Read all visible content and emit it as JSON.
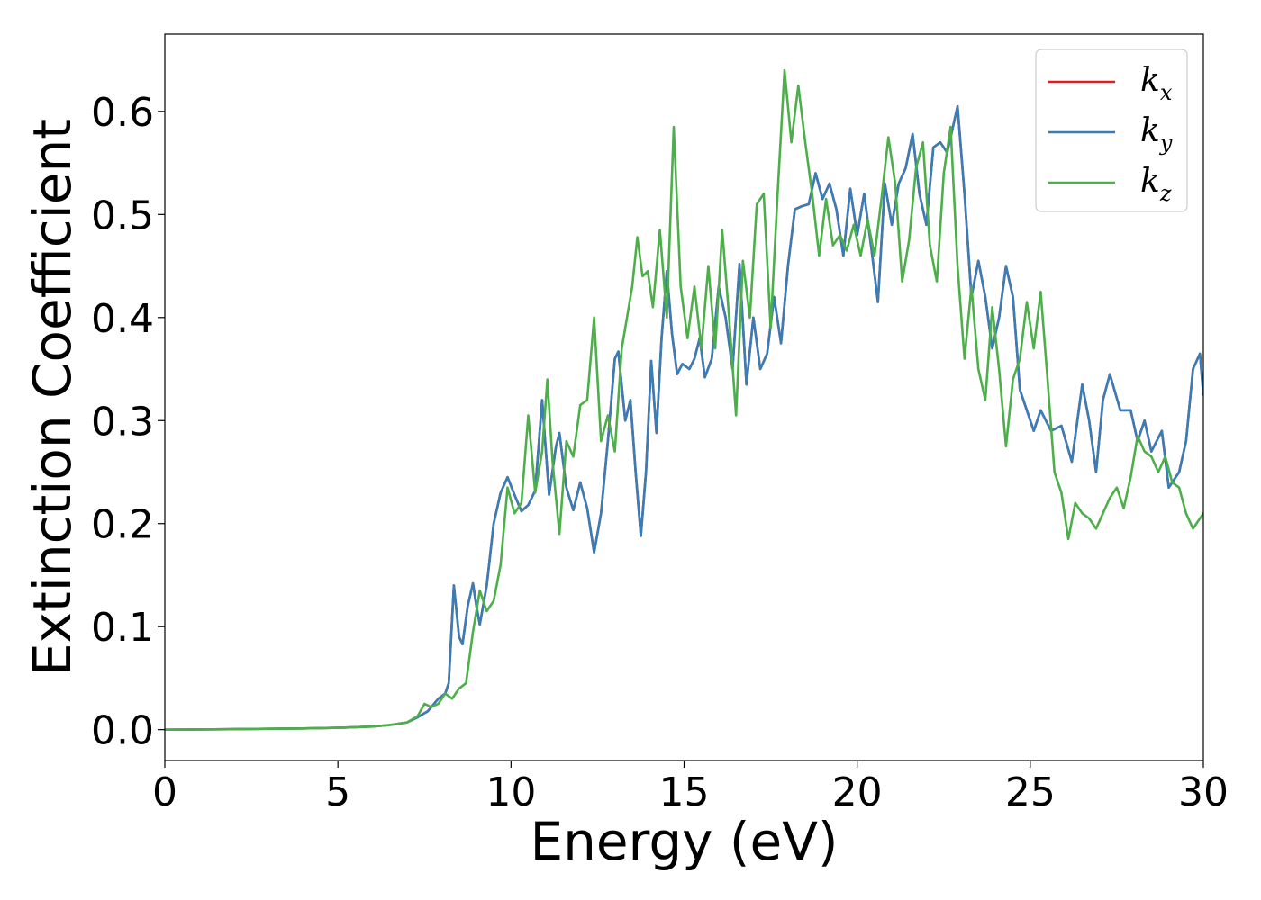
{
  "chart_data": {
    "type": "line",
    "title": "",
    "xlabel": "Energy (eV)",
    "ylabel": "Extinction Coefficient",
    "xlim": [
      0,
      30
    ],
    "ylim": [
      -0.03,
      0.675
    ],
    "xticks": [
      0,
      5,
      10,
      15,
      20,
      25,
      30
    ],
    "xtick_labels": [
      "0",
      "5",
      "10",
      "15",
      "20",
      "25",
      "30"
    ],
    "yticks": [
      0.0,
      0.1,
      0.2,
      0.3,
      0.4,
      0.5,
      0.6
    ],
    "ytick_labels": [
      "0.0",
      "0.1",
      "0.2",
      "0.3",
      "0.4",
      "0.5",
      "0.6"
    ],
    "grid": false,
    "legend_position": "top-right",
    "series": [
      {
        "name": "k",
        "subscript": "x",
        "color": "#e41a1c",
        "x": [
          0,
          2,
          4,
          5,
          6,
          6.5,
          7,
          7.3,
          7.6,
          7.9,
          8.1,
          8.2,
          8.35,
          8.5,
          8.6,
          8.75,
          8.9,
          9.0,
          9.1,
          9.3,
          9.5,
          9.7,
          9.9,
          10.1,
          10.3,
          10.5,
          10.7,
          10.9,
          11.1,
          11.3,
          11.4,
          11.6,
          11.8,
          12.0,
          12.2,
          12.4,
          12.6,
          12.8,
          13.0,
          13.1,
          13.3,
          13.45,
          13.6,
          13.75,
          13.9,
          14.05,
          14.2,
          14.35,
          14.5,
          14.65,
          14.8,
          14.95,
          15.15,
          15.3,
          15.45,
          15.6,
          15.8,
          16.0,
          16.2,
          16.4,
          16.6,
          16.8,
          17.0,
          17.2,
          17.4,
          17.6,
          17.8,
          18.0,
          18.2,
          18.4,
          18.6,
          18.8,
          19.0,
          19.2,
          19.4,
          19.6,
          19.8,
          20.0,
          20.2,
          20.4,
          20.6,
          20.8,
          21.0,
          21.2,
          21.4,
          21.6,
          21.8,
          22.0,
          22.2,
          22.4,
          22.6,
          22.9,
          23.1,
          23.3,
          23.5,
          23.7,
          23.9,
          24.1,
          24.3,
          24.5,
          24.7,
          24.9,
          25.1,
          25.3,
          25.6,
          25.9,
          26.2,
          26.5,
          26.7,
          26.9,
          27.1,
          27.3,
          27.6,
          27.9,
          28.1,
          28.3,
          28.5,
          28.8,
          29.0,
          29.3,
          29.5,
          29.7,
          29.9,
          30.0
        ],
        "y": [
          0,
          0.0005,
          0.0012,
          0.0018,
          0.003,
          0.0045,
          0.007,
          0.012,
          0.018,
          0.03,
          0.035,
          0.045,
          0.14,
          0.09,
          0.083,
          0.12,
          0.142,
          0.12,
          0.102,
          0.14,
          0.2,
          0.23,
          0.245,
          0.228,
          0.212,
          0.218,
          0.232,
          0.32,
          0.228,
          0.275,
          0.288,
          0.235,
          0.213,
          0.24,
          0.215,
          0.172,
          0.21,
          0.28,
          0.36,
          0.367,
          0.3,
          0.32,
          0.25,
          0.188,
          0.25,
          0.358,
          0.288,
          0.38,
          0.445,
          0.385,
          0.345,
          0.355,
          0.35,
          0.36,
          0.38,
          0.342,
          0.36,
          0.43,
          0.4,
          0.35,
          0.452,
          0.335,
          0.4,
          0.35,
          0.365,
          0.42,
          0.375,
          0.45,
          0.505,
          0.508,
          0.51,
          0.54,
          0.515,
          0.53,
          0.505,
          0.46,
          0.525,
          0.48,
          0.52,
          0.47,
          0.415,
          0.53,
          0.49,
          0.53,
          0.545,
          0.578,
          0.52,
          0.49,
          0.565,
          0.57,
          0.56,
          0.605,
          0.52,
          0.42,
          0.455,
          0.42,
          0.37,
          0.4,
          0.45,
          0.42,
          0.33,
          0.31,
          0.29,
          0.31,
          0.29,
          0.295,
          0.26,
          0.335,
          0.3,
          0.25,
          0.32,
          0.345,
          0.31,
          0.31,
          0.28,
          0.3,
          0.27,
          0.29,
          0.235,
          0.25,
          0.28,
          0.35,
          0.365,
          0.325
        ]
      },
      {
        "name": "k",
        "subscript": "y",
        "color": "#377eb8",
        "x": [
          0,
          2,
          4,
          5,
          6,
          6.5,
          7,
          7.3,
          7.6,
          7.9,
          8.1,
          8.2,
          8.35,
          8.5,
          8.6,
          8.75,
          8.9,
          9.0,
          9.1,
          9.3,
          9.5,
          9.7,
          9.9,
          10.1,
          10.3,
          10.5,
          10.7,
          10.9,
          11.1,
          11.3,
          11.4,
          11.6,
          11.8,
          12.0,
          12.2,
          12.4,
          12.6,
          12.8,
          13.0,
          13.1,
          13.3,
          13.45,
          13.6,
          13.75,
          13.9,
          14.05,
          14.2,
          14.35,
          14.5,
          14.65,
          14.8,
          14.95,
          15.15,
          15.3,
          15.45,
          15.6,
          15.8,
          16.0,
          16.2,
          16.4,
          16.6,
          16.8,
          17.0,
          17.2,
          17.4,
          17.6,
          17.8,
          18.0,
          18.2,
          18.4,
          18.6,
          18.8,
          19.0,
          19.2,
          19.4,
          19.6,
          19.8,
          20.0,
          20.2,
          20.4,
          20.6,
          20.8,
          21.0,
          21.2,
          21.4,
          21.6,
          21.8,
          22.0,
          22.2,
          22.4,
          22.6,
          22.9,
          23.1,
          23.3,
          23.5,
          23.7,
          23.9,
          24.1,
          24.3,
          24.5,
          24.7,
          24.9,
          25.1,
          25.3,
          25.6,
          25.9,
          26.2,
          26.5,
          26.7,
          26.9,
          27.1,
          27.3,
          27.6,
          27.9,
          28.1,
          28.3,
          28.5,
          28.8,
          29.0,
          29.3,
          29.5,
          29.7,
          29.9,
          30.0
        ],
        "y": [
          0,
          0.0005,
          0.0012,
          0.0018,
          0.003,
          0.0045,
          0.007,
          0.012,
          0.018,
          0.03,
          0.035,
          0.045,
          0.14,
          0.09,
          0.083,
          0.12,
          0.142,
          0.12,
          0.102,
          0.14,
          0.2,
          0.23,
          0.245,
          0.228,
          0.212,
          0.218,
          0.232,
          0.32,
          0.228,
          0.275,
          0.288,
          0.235,
          0.213,
          0.24,
          0.215,
          0.172,
          0.21,
          0.28,
          0.36,
          0.367,
          0.3,
          0.32,
          0.25,
          0.188,
          0.25,
          0.358,
          0.288,
          0.38,
          0.445,
          0.385,
          0.345,
          0.355,
          0.35,
          0.36,
          0.38,
          0.342,
          0.36,
          0.43,
          0.4,
          0.35,
          0.452,
          0.335,
          0.4,
          0.35,
          0.365,
          0.42,
          0.375,
          0.45,
          0.505,
          0.508,
          0.51,
          0.54,
          0.515,
          0.53,
          0.505,
          0.46,
          0.525,
          0.48,
          0.52,
          0.47,
          0.415,
          0.53,
          0.49,
          0.53,
          0.545,
          0.578,
          0.52,
          0.49,
          0.565,
          0.57,
          0.56,
          0.605,
          0.52,
          0.42,
          0.455,
          0.42,
          0.37,
          0.4,
          0.45,
          0.42,
          0.33,
          0.31,
          0.29,
          0.31,
          0.29,
          0.295,
          0.26,
          0.335,
          0.3,
          0.25,
          0.32,
          0.345,
          0.31,
          0.31,
          0.28,
          0.3,
          0.27,
          0.29,
          0.235,
          0.25,
          0.28,
          0.35,
          0.365,
          0.325
        ]
      },
      {
        "name": "k",
        "subscript": "z",
        "color": "#4daf4a",
        "x": [
          0,
          2,
          4,
          5,
          6,
          6.5,
          7,
          7.3,
          7.5,
          7.7,
          7.9,
          8.1,
          8.3,
          8.5,
          8.7,
          8.9,
          9.1,
          9.3,
          9.5,
          9.7,
          9.9,
          10.1,
          10.3,
          10.5,
          10.7,
          10.9,
          11.05,
          11.2,
          11.4,
          11.6,
          11.8,
          12.0,
          12.2,
          12.4,
          12.6,
          12.8,
          13.0,
          13.2,
          13.35,
          13.5,
          13.65,
          13.8,
          13.95,
          14.1,
          14.3,
          14.5,
          14.7,
          14.9,
          15.1,
          15.3,
          15.5,
          15.7,
          15.9,
          16.1,
          16.3,
          16.5,
          16.7,
          16.9,
          17.1,
          17.3,
          17.5,
          17.7,
          17.9,
          18.1,
          18.3,
          18.5,
          18.7,
          18.9,
          19.1,
          19.3,
          19.5,
          19.7,
          19.9,
          20.1,
          20.3,
          20.5,
          20.7,
          20.9,
          21.1,
          21.3,
          21.5,
          21.7,
          21.9,
          22.1,
          22.3,
          22.5,
          22.7,
          22.9,
          23.1,
          23.3,
          23.5,
          23.7,
          23.9,
          24.1,
          24.3,
          24.5,
          24.7,
          24.9,
          25.1,
          25.3,
          25.5,
          25.7,
          25.9,
          26.1,
          26.3,
          26.5,
          26.7,
          26.9,
          27.1,
          27.3,
          27.5,
          27.7,
          27.9,
          28.1,
          28.3,
          28.5,
          28.7,
          28.9,
          29.1,
          29.3,
          29.5,
          29.7,
          29.9,
          30.0
        ],
        "y": [
          0,
          0.0005,
          0.0012,
          0.0018,
          0.003,
          0.0045,
          0.007,
          0.013,
          0.025,
          0.022,
          0.025,
          0.035,
          0.03,
          0.04,
          0.045,
          0.095,
          0.135,
          0.115,
          0.125,
          0.16,
          0.235,
          0.21,
          0.22,
          0.305,
          0.23,
          0.27,
          0.34,
          0.26,
          0.19,
          0.28,
          0.265,
          0.315,
          0.32,
          0.4,
          0.28,
          0.305,
          0.27,
          0.37,
          0.4,
          0.43,
          0.478,
          0.44,
          0.445,
          0.41,
          0.485,
          0.4,
          0.585,
          0.43,
          0.38,
          0.43,
          0.37,
          0.45,
          0.37,
          0.485,
          0.4,
          0.305,
          0.455,
          0.4,
          0.51,
          0.52,
          0.39,
          0.52,
          0.64,
          0.57,
          0.625,
          0.57,
          0.52,
          0.46,
          0.515,
          0.47,
          0.48,
          0.465,
          0.49,
          0.46,
          0.495,
          0.46,
          0.515,
          0.575,
          0.53,
          0.435,
          0.475,
          0.545,
          0.57,
          0.47,
          0.435,
          0.54,
          0.585,
          0.45,
          0.36,
          0.43,
          0.35,
          0.32,
          0.41,
          0.35,
          0.275,
          0.34,
          0.36,
          0.415,
          0.37,
          0.425,
          0.34,
          0.25,
          0.23,
          0.185,
          0.22,
          0.21,
          0.205,
          0.195,
          0.21,
          0.225,
          0.235,
          0.215,
          0.245,
          0.285,
          0.27,
          0.265,
          0.25,
          0.265,
          0.24,
          0.235,
          0.21,
          0.195,
          0.205,
          0.21
        ]
      }
    ]
  }
}
